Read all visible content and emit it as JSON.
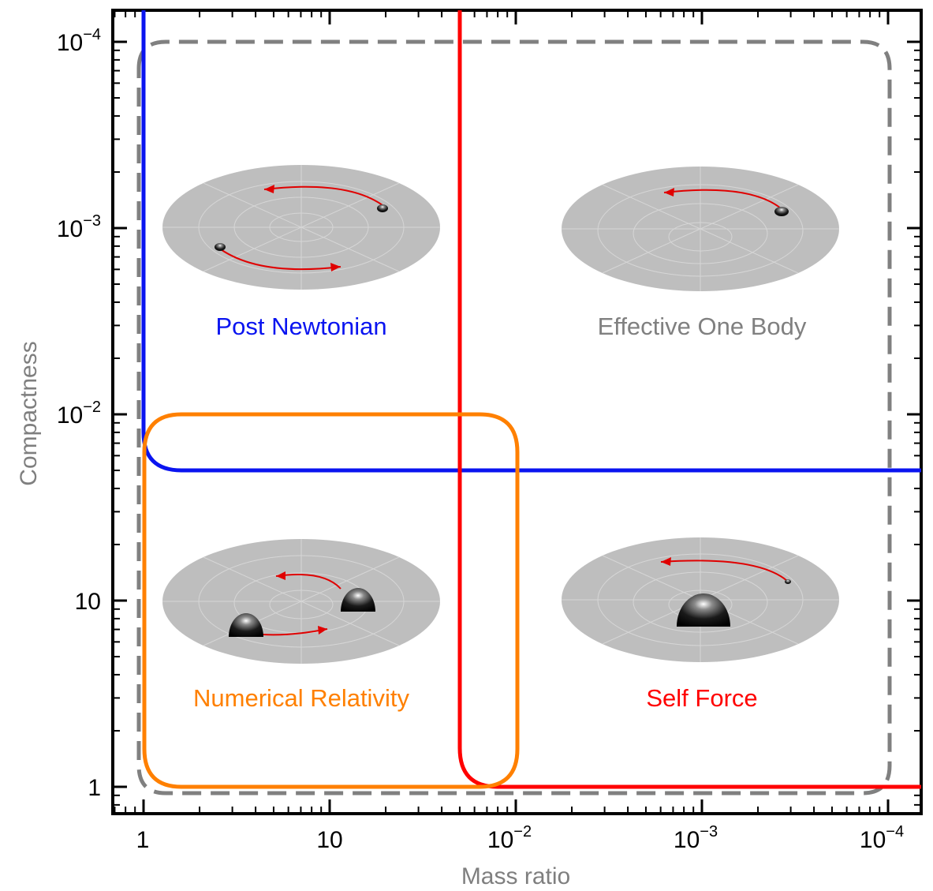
{
  "axes": {
    "x_title": "Mass ratio",
    "y_title": "Compactness",
    "x_ticks": [
      {
        "base": "1",
        "exp": ""
      },
      {
        "base": "10",
        "exp": ""
      },
      {
        "base": "10",
        "exp": "−2"
      },
      {
        "base": "10",
        "exp": "−3"
      },
      {
        "base": "10",
        "exp": "−4"
      }
    ],
    "y_ticks": [
      {
        "base": "10",
        "exp": "−4"
      },
      {
        "base": "10",
        "exp": "−3"
      },
      {
        "base": "10",
        "exp": "−2"
      },
      {
        "base": "10",
        "exp": ""
      },
      {
        "base": "1",
        "exp": ""
      }
    ]
  },
  "regions": {
    "post_newtonian": "Post Newtonian",
    "effective_one_body": "Effective One Body",
    "numerical_relativity": "Numerical Relativity",
    "self_force": "Self Force"
  },
  "colors": {
    "post_newtonian": "#0a14f0",
    "effective_one_body": "#808080",
    "numerical_relativity": "#ff8000",
    "self_force": "#ff0000",
    "disk": "#bebebe",
    "orbit_arrow": "#e00000"
  }
}
